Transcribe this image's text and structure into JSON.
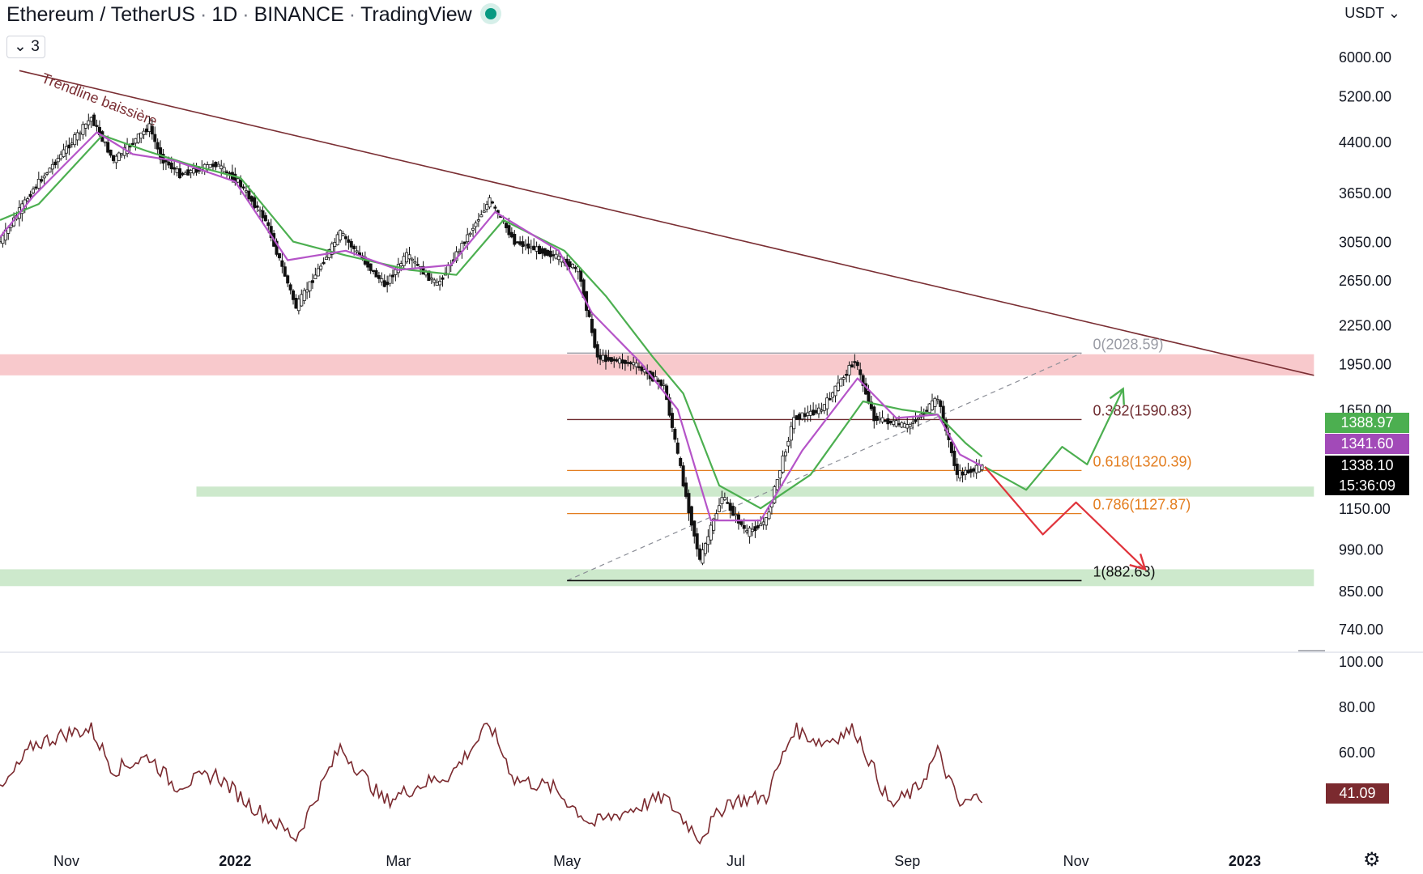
{
  "header": {
    "pair": "Ethereum / TetherUS",
    "interval": "1D",
    "exchange": "BINANCE",
    "source": "TradingView",
    "indicator_count": "3",
    "currency": "USDT"
  },
  "colors": {
    "candle": "#111111",
    "ema_fast": "#b554c8",
    "ema_slow": "#4caf50",
    "trendline": "#7a2e33",
    "resistance_zone": "#f8c9cc",
    "support_zone": "#cde9cc",
    "fib_gray": "#787b86",
    "fib_dark": "#6d2a2e",
    "fib_orange": "#e37d1f",
    "scenario_up": "#4caf50",
    "scenario_down": "#e0343c",
    "rsi": "#7b2a2f"
  },
  "annotations": {
    "trendline_label": "Trendline baissière"
  },
  "tags": {
    "ema_slow": "1388.97",
    "ema_fast": "1341.60",
    "price": "1338.10",
    "countdown": "15:36:09",
    "rsi": "41.09"
  },
  "chart_data": {
    "type": "candlestick",
    "scale": "log",
    "x_range": [
      "2021-10-08",
      "2023-01-30"
    ],
    "x_ticks": [
      {
        "date": "2021-11-01",
        "label": "Nov"
      },
      {
        "date": "2022-01-01",
        "label": "2022"
      },
      {
        "date": "2022-03-01",
        "label": "Mar"
      },
      {
        "date": "2022-05-01",
        "label": "May"
      },
      {
        "date": "2022-07-01",
        "label": "Jul"
      },
      {
        "date": "2022-09-01",
        "label": "Sep"
      },
      {
        "date": "2022-11-01",
        "label": "Nov"
      },
      {
        "date": "2023-01-01",
        "label": "2023"
      }
    ],
    "y_ticks": [
      "6000.00",
      "5200.00",
      "4400.00",
      "3650.00",
      "3050.00",
      "2650.00",
      "2250.00",
      "1950.00",
      "1650.00",
      "1150.00",
      "990.00",
      "850.00",
      "740.00"
    ],
    "price_path": [
      [
        "2021-10-08",
        3050
      ],
      [
        "2021-10-20",
        3700
      ],
      [
        "2021-11-10",
        4800
      ],
      [
        "2021-11-18",
        4100
      ],
      [
        "2021-12-01",
        4650
      ],
      [
        "2021-12-05",
        4150
      ],
      [
        "2021-12-12",
        3900
      ],
      [
        "2021-12-25",
        4050
      ],
      [
        "2022-01-02",
        3800
      ],
      [
        "2022-01-12",
        3300
      ],
      [
        "2022-01-23",
        2400
      ],
      [
        "2022-02-08",
        3150
      ],
      [
        "2022-02-24",
        2600
      ],
      [
        "2022-03-04",
        2900
      ],
      [
        "2022-03-15",
        2600
      ],
      [
        "2022-04-03",
        3550
      ],
      [
        "2022-04-12",
        3050
      ],
      [
        "2022-04-26",
        2900
      ],
      [
        "2022-05-05",
        2750
      ],
      [
        "2022-05-12",
        2000
      ],
      [
        "2022-05-25",
        1950
      ],
      [
        "2022-06-05",
        1800
      ],
      [
        "2022-06-13",
        1200
      ],
      [
        "2022-06-18",
        950
      ],
      [
        "2022-06-26",
        1200
      ],
      [
        "2022-07-05",
        1050
      ],
      [
        "2022-07-12",
        1100
      ],
      [
        "2022-07-22",
        1600
      ],
      [
        "2022-08-01",
        1650
      ],
      [
        "2022-08-13",
        1980
      ],
      [
        "2022-08-20",
        1600
      ],
      [
        "2022-09-01",
        1550
      ],
      [
        "2022-09-08",
        1650
      ],
      [
        "2022-09-12",
        1720
      ],
      [
        "2022-09-19",
        1300
      ],
      [
        "2022-09-28",
        1338
      ]
    ],
    "ema_fast_path": [
      [
        "2021-10-08",
        3100
      ],
      [
        "2021-10-20",
        3600
      ],
      [
        "2021-11-12",
        4550
      ],
      [
        "2021-11-25",
        4200
      ],
      [
        "2021-12-10",
        4100
      ],
      [
        "2022-01-01",
        3800
      ],
      [
        "2022-01-20",
        2850
      ],
      [
        "2022-02-10",
        2950
      ],
      [
        "2022-03-01",
        2750
      ],
      [
        "2022-03-20",
        2800
      ],
      [
        "2022-04-05",
        3400
      ],
      [
        "2022-04-28",
        2950
      ],
      [
        "2022-05-10",
        2350
      ],
      [
        "2022-05-28",
        1950
      ],
      [
        "2022-06-10",
        1650
      ],
      [
        "2022-06-22",
        1100
      ],
      [
        "2022-07-10",
        1100
      ],
      [
        "2022-07-25",
        1420
      ],
      [
        "2022-08-14",
        1850
      ],
      [
        "2022-08-28",
        1600
      ],
      [
        "2022-09-12",
        1620
      ],
      [
        "2022-09-20",
        1400
      ],
      [
        "2022-09-28",
        1341.6
      ]
    ],
    "ema_slow_path": [
      [
        "2021-10-08",
        3300
      ],
      [
        "2021-10-22",
        3500
      ],
      [
        "2021-11-14",
        4500
      ],
      [
        "2021-11-30",
        4250
      ],
      [
        "2021-12-15",
        4050
      ],
      [
        "2022-01-03",
        3850
      ],
      [
        "2022-01-22",
        3050
      ],
      [
        "2022-02-10",
        2900
      ],
      [
        "2022-03-05",
        2750
      ],
      [
        "2022-03-22",
        2700
      ],
      [
        "2022-04-08",
        3300
      ],
      [
        "2022-04-30",
        2950
      ],
      [
        "2022-05-15",
        2500
      ],
      [
        "2022-06-01",
        2000
      ],
      [
        "2022-06-12",
        1750
      ],
      [
        "2022-06-25",
        1250
      ],
      [
        "2022-07-10",
        1150
      ],
      [
        "2022-07-28",
        1300
      ],
      [
        "2022-08-16",
        1700
      ],
      [
        "2022-08-30",
        1650
      ],
      [
        "2022-09-12",
        1620
      ],
      [
        "2022-09-22",
        1460
      ],
      [
        "2022-09-28",
        1388.97
      ]
    ],
    "trendline": [
      [
        "2021-10-15",
        5700
      ],
      [
        "2023-01-26",
        1870
      ]
    ],
    "zones": [
      {
        "name": "resistance",
        "from": "2021-10-08",
        "to": "2023-01-26",
        "low": 1870,
        "high": 2020
      },
      {
        "name": "support_mid",
        "from": "2021-12-18",
        "to": "2023-01-26",
        "low": 1200,
        "high": 1245
      },
      {
        "name": "support_low",
        "from": "2021-10-08",
        "to": "2023-01-26",
        "low": 865,
        "high": 920
      }
    ],
    "fib_levels": [
      {
        "label": "0(2028.59)",
        "value": 2028.59,
        "color": "#9a9ca5"
      },
      {
        "label": "0.382(1590.83)",
        "value": 1590.83,
        "color": "#6d2a2e"
      },
      {
        "label": "0.618(1320.39)",
        "value": 1320.39,
        "color": "#e37d1f"
      },
      {
        "label": "0.786(1127.87)",
        "value": 1127.87,
        "color": "#e37d1f"
      },
      {
        "label": "1(882.63)",
        "value": 882.63,
        "color": "#111111"
      }
    ],
    "fib_range": [
      "2022-05-01",
      "2022-11-03"
    ],
    "scenario_up": [
      [
        "2022-09-29",
        1338
      ],
      [
        "2022-10-14",
        1230
      ],
      [
        "2022-10-27",
        1440
      ],
      [
        "2022-11-05",
        1350
      ],
      [
        "2022-11-18",
        1780
      ]
    ],
    "scenario_down": [
      [
        "2022-09-29",
        1338
      ],
      [
        "2022-10-20",
        1045
      ],
      [
        "2022-11-01",
        1175
      ],
      [
        "2022-11-26",
        920
      ]
    ],
    "rsi": {
      "y_ticks": [
        "100.00",
        "80.00",
        "60.00"
      ],
      "last": 41.09,
      "path": [
        [
          "2021-10-08",
          42
        ],
        [
          "2021-10-20",
          63
        ],
        [
          "2021-11-01",
          68
        ],
        [
          "2021-11-10",
          70
        ],
        [
          "2021-11-18",
          52
        ],
        [
          "2021-12-01",
          58
        ],
        [
          "2021-12-10",
          45
        ],
        [
          "2021-12-25",
          50
        ],
        [
          "2022-01-05",
          38
        ],
        [
          "2022-01-23",
          22
        ],
        [
          "2022-02-08",
          62
        ],
        [
          "2022-02-24",
          38
        ],
        [
          "2022-03-10",
          46
        ],
        [
          "2022-03-20",
          50
        ],
        [
          "2022-04-03",
          72
        ],
        [
          "2022-04-12",
          48
        ],
        [
          "2022-04-26",
          44
        ],
        [
          "2022-05-10",
          28
        ],
        [
          "2022-05-25",
          35
        ],
        [
          "2022-06-05",
          40
        ],
        [
          "2022-06-18",
          22
        ],
        [
          "2022-06-28",
          38
        ],
        [
          "2022-07-12",
          40
        ],
        [
          "2022-07-22",
          70
        ],
        [
          "2022-08-01",
          64
        ],
        [
          "2022-08-13",
          70
        ],
        [
          "2022-08-26",
          36
        ],
        [
          "2022-09-05",
          44
        ],
        [
          "2022-09-12",
          60
        ],
        [
          "2022-09-20",
          36
        ],
        [
          "2022-09-28",
          41
        ]
      ]
    }
  }
}
